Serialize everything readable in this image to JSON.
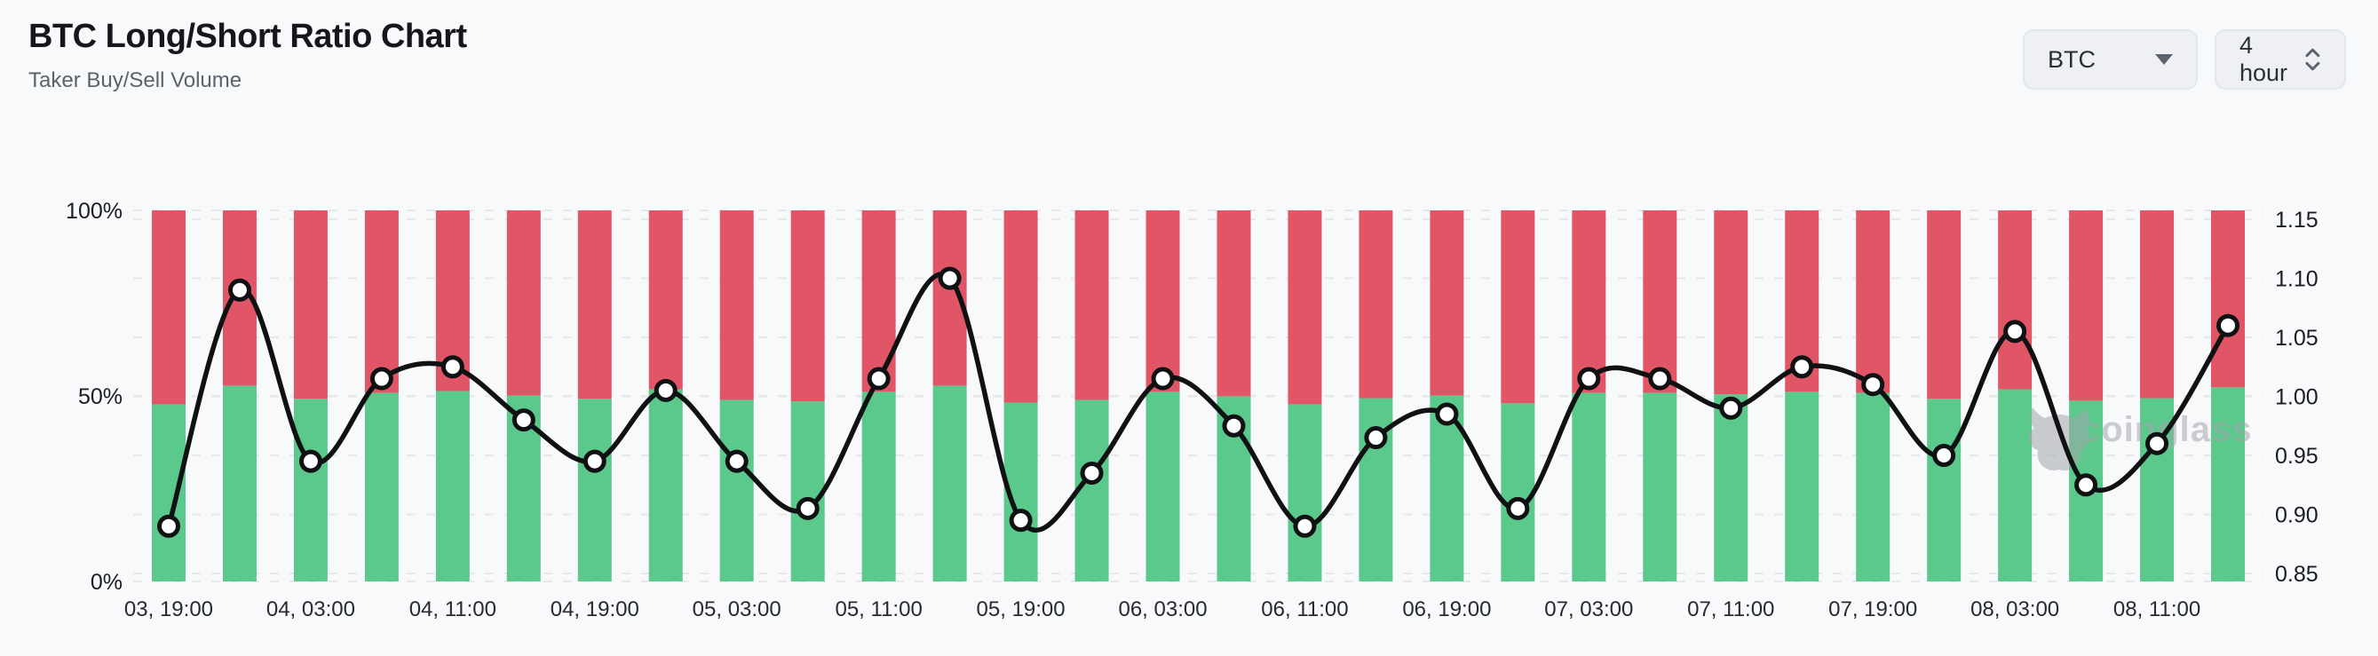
{
  "header": {
    "title": "BTC Long/Short Ratio Chart",
    "subtitle": "Taker Buy/Sell Volume"
  },
  "controls": {
    "symbol_select": {
      "value": "BTC"
    },
    "interval_select": {
      "value": "4 hour"
    }
  },
  "watermark": {
    "text": "coinglass"
  },
  "colors": {
    "buy_green": "#5bc88c",
    "sell_red": "#e05666",
    "line_black": "#101113",
    "marker_fill": "#ffffff",
    "gridline": "#e7e8eb",
    "tick_text": "#1a1d21",
    "x_label_text": "#26292e",
    "watermark_gray": "#a3a7ac"
  },
  "chart_data": {
    "type": "bar",
    "subtype": "stacked-percent-bars-with-line-overlay",
    "title": "BTC Long/Short Ratio Chart",
    "categories": [
      "03, 19:00",
      "03, 23:00",
      "04, 03:00",
      "04, 07:00",
      "04, 11:00",
      "04, 15:00",
      "04, 19:00",
      "04, 23:00",
      "05, 03:00",
      "05, 07:00",
      "05, 11:00",
      "05, 15:00",
      "05, 19:00",
      "05, 23:00",
      "06, 03:00",
      "06, 07:00",
      "06, 11:00",
      "06, 15:00",
      "06, 19:00",
      "06, 23:00",
      "07, 03:00",
      "07, 07:00",
      "07, 11:00",
      "07, 15:00",
      "07, 19:00",
      "07, 23:00",
      "08, 03:00",
      "08, 07:00",
      "08, 11:00",
      "08, 15:00"
    ],
    "x_tick_label_every": 2,
    "x_tick_labels_shown": [
      "03, 19:00",
      "04, 03:00",
      "04, 11:00",
      "04, 19:00",
      "05, 03:00",
      "05, 11:00",
      "05, 19:00",
      "06, 03:00",
      "06, 11:00",
      "06, 19:00",
      "07, 03:00",
      "07, 11:00",
      "07, 19:00",
      "08, 03:00",
      "08, 11:00"
    ],
    "series": [
      {
        "name": "Taker Buy Volume %",
        "type": "bar",
        "stack": "volume",
        "axis": "left",
        "values": [
          47.7,
          52.7,
          49.2,
          50.8,
          51.3,
          50.1,
          49.2,
          51.8,
          48.9,
          48.5,
          51.1,
          52.7,
          48.2,
          48.9,
          51.1,
          49.9,
          47.7,
          49.4,
          50.1,
          48.0,
          50.8,
          50.8,
          50.4,
          51.1,
          50.8,
          49.2,
          51.8,
          48.7,
          49.4,
          52.3
        ]
      },
      {
        "name": "Taker Sell Volume %",
        "type": "bar",
        "stack": "volume",
        "axis": "left",
        "values": [
          52.3,
          47.3,
          50.8,
          49.2,
          48.7,
          49.9,
          50.8,
          48.2,
          51.1,
          51.5,
          48.9,
          47.3,
          51.8,
          51.1,
          48.9,
          50.1,
          52.3,
          50.6,
          49.9,
          52.0,
          49.2,
          49.2,
          49.6,
          48.9,
          49.2,
          50.8,
          48.2,
          51.3,
          50.6,
          47.7
        ]
      },
      {
        "name": "Long/Short Ratio",
        "type": "line",
        "axis": "right",
        "values": [
          0.89,
          1.09,
          0.945,
          1.015,
          1.025,
          0.98,
          0.945,
          1.005,
          0.945,
          0.905,
          1.015,
          1.1,
          0.895,
          0.935,
          1.015,
          0.975,
          0.89,
          0.965,
          0.985,
          0.905,
          1.015,
          1.015,
          0.99,
          1.025,
          1.01,
          0.95,
          1.055,
          0.925,
          0.96,
          1.06
        ]
      }
    ],
    "left_axis": {
      "tick_labels": [
        "100%",
        "50%",
        "0%"
      ],
      "tick_values": [
        100,
        50,
        0
      ],
      "min": 0,
      "max": 100
    },
    "right_axis": {
      "tick_labels": [
        "1.15",
        "1.10",
        "1.05",
        "1.00",
        "0.95",
        "0.90",
        "0.85"
      ],
      "tick_values": [
        1.15,
        1.1,
        1.05,
        1.0,
        0.95,
        0.9,
        0.85
      ],
      "min": 0.85,
      "max": 1.15
    },
    "grid": "dashed-horizontal",
    "legend": "none"
  }
}
